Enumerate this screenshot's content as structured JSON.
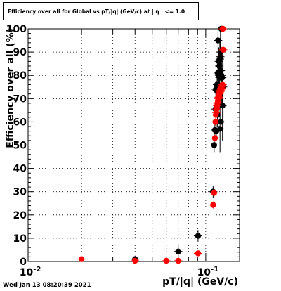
{
  "title": "Efficiency over all for Global vs pT/|q| (GeV/c) at | η | <= 1.0",
  "footer": "Wed Jan 13 08:20:39 2021",
  "chart_data": {
    "type": "scatter",
    "title": "Efficiency over all for Global vs pT/|q| (GeV/c) at | η | <= 1.0",
    "xlabel": "pT/|q| (GeV/c)",
    "ylabel": "Efficiency over all (%)",
    "xscale": "log",
    "xlim": [
      0.01,
      0.155
    ],
    "ylim": [
      0,
      100
    ],
    "grid": true,
    "x_ticks": [
      {
        "value": 0.01,
        "label": "10^-2"
      },
      {
        "value": 0.1,
        "label": "10^-1"
      }
    ],
    "y_ticks": [
      0,
      10,
      20,
      30,
      40,
      50,
      60,
      70,
      80,
      90,
      100
    ],
    "series": [
      {
        "color": "#000000",
        "points": [
          {
            "x": 0.04,
            "y": 1.0,
            "err": 1.5
          },
          {
            "x": 0.07,
            "y": 4.3,
            "err": 3.0
          },
          {
            "x": 0.0905,
            "y": 11.0,
            "err": 2.5
          },
          {
            "x": 0.11,
            "y": 30.0,
            "err": 2.5
          },
          {
            "x": 0.1115,
            "y": 50.0,
            "err": 3.0
          },
          {
            "x": 0.1126,
            "y": 56.5,
            "err": 3.0
          },
          {
            "x": 0.1134,
            "y": 65.5,
            "err": 3.5
          },
          {
            "x": 0.114,
            "y": 74.0,
            "err": 3.5
          },
          {
            "x": 0.1147,
            "y": 56.0,
            "err": 4.0
          },
          {
            "x": 0.1152,
            "y": 73.5,
            "err": 4.0
          },
          {
            "x": 0.1158,
            "y": 76.0,
            "err": 4.5
          },
          {
            "x": 0.1165,
            "y": 63.0,
            "err": 5.0
          },
          {
            "x": 0.117,
            "y": 81.0,
            "err": 5.0
          },
          {
            "x": 0.1173,
            "y": 95.0,
            "err": 4.0
          },
          {
            "x": 0.1178,
            "y": 75.0,
            "err": 6.0
          },
          {
            "x": 0.1185,
            "y": 86.0,
            "err": 6.0
          },
          {
            "x": 0.1188,
            "y": 80.0,
            "err": 6.0
          },
          {
            "x": 0.1192,
            "y": 84.0,
            "err": 7.0
          },
          {
            "x": 0.1197,
            "y": 79.0,
            "err": 8.0
          },
          {
            "x": 0.12,
            "y": 87.0,
            "err": 7.0
          },
          {
            "x": 0.1203,
            "y": 57.0,
            "err": 10.0
          },
          {
            "x": 0.1207,
            "y": 88.0,
            "err": 8.0
          },
          {
            "x": 0.121,
            "y": 90.0,
            "err": 9.0
          },
          {
            "x": 0.1215,
            "y": 82.0,
            "err": 10.0
          },
          {
            "x": 0.1218,
            "y": 60.0,
            "err": 18.0
          },
          {
            "x": 0.1222,
            "y": 100.0,
            "err": 0.0
          },
          {
            "x": 0.1226,
            "y": 80.0,
            "err": 12.0
          },
          {
            "x": 0.1232,
            "y": 100.0,
            "err": 0.0
          },
          {
            "x": 0.1237,
            "y": 79.0,
            "err": 12.0
          },
          {
            "x": 0.1242,
            "y": 67.0,
            "err": 15.0
          },
          {
            "x": 0.1247,
            "y": 100.0,
            "err": 0.0
          },
          {
            "x": 0.1252,
            "y": 75.0,
            "err": 15.0
          }
        ]
      },
      {
        "color": "#ff0000",
        "points": [
          {
            "x": 0.02,
            "y": 1.0,
            "err": 0.5
          },
          {
            "x": 0.04,
            "y": 0.3,
            "err": 0.3
          },
          {
            "x": 0.06,
            "y": 0.3,
            "err": 0.3
          },
          {
            "x": 0.07,
            "y": 0.3,
            "err": 0.3
          },
          {
            "x": 0.0905,
            "y": 3.5,
            "err": 0.8
          },
          {
            "x": 0.11,
            "y": 24.3,
            "err": 1.5
          },
          {
            "x": 0.1115,
            "y": 29.5,
            "err": 1.5
          },
          {
            "x": 0.1126,
            "y": 53.0,
            "err": 1.5
          },
          {
            "x": 0.1134,
            "y": 60.0,
            "err": 1.5
          },
          {
            "x": 0.114,
            "y": 63.0,
            "err": 1.5
          },
          {
            "x": 0.1147,
            "y": 64.0,
            "err": 1.5
          },
          {
            "x": 0.1152,
            "y": 65.5,
            "err": 1.5
          },
          {
            "x": 0.1158,
            "y": 67.0,
            "err": 1.5
          },
          {
            "x": 0.1164,
            "y": 68.0,
            "err": 1.5
          },
          {
            "x": 0.117,
            "y": 69.0,
            "err": 1.5
          },
          {
            "x": 0.1176,
            "y": 70.0,
            "err": 1.5
          },
          {
            "x": 0.1182,
            "y": 70.5,
            "err": 1.5
          },
          {
            "x": 0.1188,
            "y": 71.0,
            "err": 1.5
          },
          {
            "x": 0.1194,
            "y": 72.0,
            "err": 1.5
          },
          {
            "x": 0.12,
            "y": 72.5,
            "err": 1.5
          },
          {
            "x": 0.1206,
            "y": 73.0,
            "err": 1.5
          },
          {
            "x": 0.1212,
            "y": 73.5,
            "err": 1.5
          },
          {
            "x": 0.1218,
            "y": 74.0,
            "err": 1.5
          },
          {
            "x": 0.1224,
            "y": 74.5,
            "err": 1.5
          },
          {
            "x": 0.123,
            "y": 75.0,
            "err": 1.5
          },
          {
            "x": 0.1236,
            "y": 75.5,
            "err": 1.5
          },
          {
            "x": 0.1242,
            "y": 76.0,
            "err": 1.5
          },
          {
            "x": 0.1247,
            "y": 100.0,
            "err": 0.0
          },
          {
            "x": 0.1252,
            "y": 91.0,
            "err": 1.5
          }
        ]
      }
    ]
  }
}
